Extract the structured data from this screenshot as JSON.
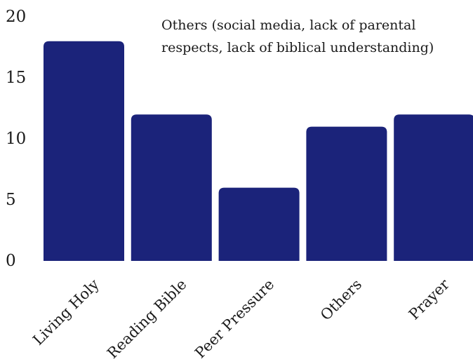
{
  "chart_data": {
    "type": "bar",
    "title": "",
    "xlabel": "",
    "ylabel": "",
    "categories": [
      "Living Holy",
      "Reading Bible",
      "Peer Pressure",
      "Others",
      "Prayer"
    ],
    "values": [
      18,
      12,
      6,
      11,
      12
    ],
    "ylim": [
      0,
      20
    ],
    "yticks": [
      "0",
      "5",
      "10",
      "15",
      "20"
    ],
    "grid": false,
    "bar_color": "#1b237a",
    "annotation": "Others (social media, lack of parental respects, lack of biblical understanding)"
  }
}
